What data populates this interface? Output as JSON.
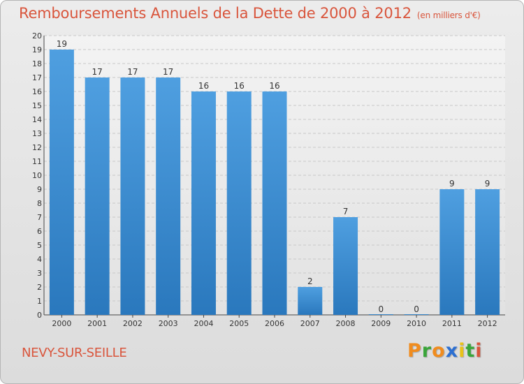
{
  "chart_data": {
    "type": "bar",
    "title": "Remboursements Annuels de la Dette de 2000 à 2012",
    "subtitle": "(en milliers d'€)",
    "categories": [
      "2000",
      "2001",
      "2002",
      "2003",
      "2004",
      "2005",
      "2006",
      "2007",
      "2008",
      "2009",
      "2010",
      "2011",
      "2012"
    ],
    "values": [
      19,
      17,
      17,
      17,
      16,
      16,
      16,
      2,
      7,
      0,
      0,
      9,
      9
    ],
    "ylim": [
      0,
      20
    ],
    "yticks": [
      0,
      1,
      2,
      3,
      4,
      5,
      6,
      7,
      8,
      9,
      10,
      11,
      12,
      13,
      14,
      15,
      16,
      17,
      18,
      19,
      20
    ],
    "grid": true,
    "bar_color": "#4f9fe0",
    "bar_color_dark": "#2a78bd"
  },
  "commune": "NEVY-SUR-SEILLE",
  "brand": {
    "letters": [
      "P",
      "r",
      "o",
      "x",
      "i",
      "t",
      "i"
    ],
    "colors": [
      "#f08c1e",
      "#3aa53a",
      "#f08c1e",
      "#2c6fd1",
      "#e8c21a",
      "#3aa53a",
      "#d9553c"
    ]
  }
}
